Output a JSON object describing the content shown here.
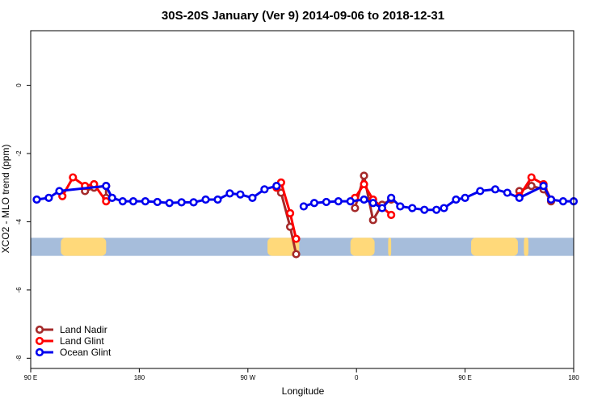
{
  "chart_data": {
    "type": "line",
    "title": "30S-20S January (Ver 9)   2014-09-06 to 2018-12-31",
    "xlabel": "Longitude",
    "ylabel": "XCO2 - MLO trend (ppm)",
    "xlim": [
      90,
      450
    ],
    "ylim": [
      -8.3,
      1.6
    ],
    "x_ticks": [
      {
        "value": 90,
        "label": "90 E"
      },
      {
        "value": 162,
        "label": "180"
      },
      {
        "value": 234,
        "label": "90 W"
      },
      {
        "value": 306,
        "label": "0"
      },
      {
        "value": 378,
        "label": "90 E"
      },
      {
        "value": 450,
        "label": "180"
      }
    ],
    "y_ticks": [
      {
        "value": 0,
        "label": "0"
      },
      {
        "value": -2,
        "label": "-2"
      },
      {
        "value": -4,
        "label": "-4"
      },
      {
        "value": -6,
        "label": "-6"
      },
      {
        "value": -8,
        "label": "-8"
      }
    ],
    "land_band": {
      "y_range": [
        -5.0,
        -4.47
      ],
      "ocean_color": "#a6bddb",
      "land_color": "#ffd97a",
      "land_segments": [
        [
          110,
          140
        ],
        [
          247,
          268
        ],
        [
          302,
          318
        ],
        [
          327,
          329
        ],
        [
          382,
          413
        ],
        [
          417,
          420
        ]
      ]
    },
    "series": [
      {
        "name": "Land Nadir",
        "color": "#a52a2a",
        "segments": [
          {
            "x": [
              126,
              132,
              140,
              140
            ],
            "y": [
              -3.1,
              -3.0,
              -2.95,
              -3.3
            ]
          },
          {
            "x": [
              253,
              256,
              262,
              266
            ],
            "y": [
              -2.95,
              -3.15,
              -4.15,
              -4.95
            ]
          },
          {
            "x": [
              305,
              311,
              317,
              323,
              329
            ],
            "y": [
              -3.6,
              -2.65,
              -3.95,
              -3.5,
              -3.35
            ]
          },
          {
            "x": [
              414,
              422,
              430,
              435
            ],
            "y": [
              -3.1,
              -2.95,
              -3.05,
              -3.4
            ]
          }
        ]
      },
      {
        "name": "Land Glint",
        "color": "#ff0000",
        "segments": [
          {
            "x": [
              111,
              118,
              126,
              132,
              140
            ],
            "y": [
              -3.25,
              -2.7,
              -2.95,
              -2.9,
              -3.4
            ]
          },
          {
            "x": [
              253,
              256,
              262,
              266
            ],
            "y": [
              -3.0,
              -2.85,
              -3.75,
              -4.5
            ]
          },
          {
            "x": [
              305,
              311,
              317,
              329
            ],
            "y": [
              -3.3,
              -2.9,
              -3.35,
              -3.8
            ]
          },
          {
            "x": [
              414,
              422,
              430,
              435
            ],
            "y": [
              -3.25,
              -2.7,
              -2.9,
              -3.35
            ]
          }
        ]
      },
      {
        "name": "Ocean Glint",
        "color": "#0000ee",
        "segments": [
          {
            "x": [
              94,
              102,
              109,
              140,
              144,
              151,
              158,
              166,
              174,
              182,
              190,
              198,
              206,
              214,
              222,
              229,
              237,
              245,
              253
            ],
            "y": [
              -3.35,
              -3.3,
              -3.1,
              -2.95,
              -3.3,
              -3.4,
              -3.4,
              -3.4,
              -3.42,
              -3.45,
              -3.43,
              -3.43,
              -3.35,
              -3.35,
              -3.17,
              -3.2,
              -3.3,
              -3.05,
              -2.95
            ]
          },
          {
            "x": [
              271,
              278,
              286,
              294,
              302,
              311,
              317,
              323,
              329,
              335,
              343,
              351,
              359,
              364,
              372,
              378,
              388,
              398,
              406,
              414,
              430,
              435,
              443,
              450
            ],
            "y": [
              -3.55,
              -3.45,
              -3.42,
              -3.4,
              -3.4,
              -3.35,
              -3.45,
              -3.6,
              -3.3,
              -3.55,
              -3.6,
              -3.65,
              -3.65,
              -3.6,
              -3.35,
              -3.3,
              -3.1,
              -3.05,
              -3.15,
              -3.3,
              -2.95,
              -3.35,
              -3.4,
              -3.4
            ]
          }
        ]
      }
    ],
    "legend_position": "bottom-left"
  }
}
